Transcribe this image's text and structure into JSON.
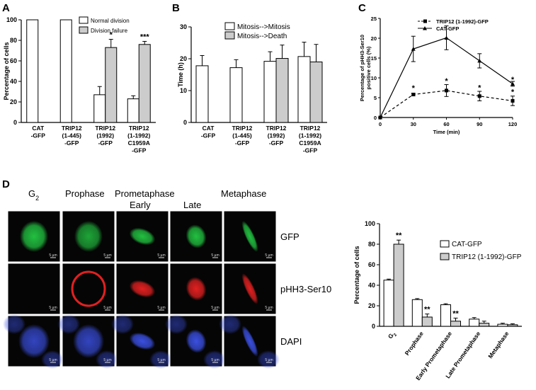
{
  "panels": {
    "A": {
      "letter": "A"
    },
    "B": {
      "letter": "B"
    },
    "C": {
      "letter": "C"
    },
    "D": {
      "letter": "D"
    }
  },
  "chart_data": [
    {
      "id": "A",
      "type": "bar",
      "ylabel": "Percentage of cells",
      "ylim": [
        0,
        100
      ],
      "yticks": [
        0,
        20,
        40,
        60,
        80,
        100
      ],
      "categories": [
        [
          "CAT",
          "-GFP"
        ],
        [
          "TRIP12",
          "(1-445)",
          "-GFP"
        ],
        [
          "TRIP12",
          "(1992)",
          "-GFP"
        ],
        [
          "TRIP12",
          "(1-1992)",
          "C1959A",
          "-GFP"
        ]
      ],
      "series": [
        {
          "name": "Normal division",
          "color": "#ffffff",
          "values": [
            100,
            100,
            27,
            23
          ],
          "errors": [
            0,
            0,
            8,
            3
          ]
        },
        {
          "name": "Division failure",
          "color": "#cccccc",
          "values": [
            null,
            null,
            73,
            76
          ],
          "errors": [
            0,
            0,
            8,
            3
          ]
        }
      ],
      "annotations": [
        {
          "index": 2,
          "text": "*"
        },
        {
          "index": 3,
          "text": "***"
        }
      ],
      "legend_position": "top-right"
    },
    {
      "id": "B",
      "type": "bar",
      "ylabel": "Time (h)",
      "ylim": [
        0,
        30
      ],
      "yticks": [
        0,
        10,
        20,
        30
      ],
      "categories": [
        [
          "CAT",
          "-GFP"
        ],
        [
          "TRIP12",
          "(1-445)",
          "-GFP"
        ],
        [
          "TRIP12",
          "(1992)",
          "-GFP"
        ],
        [
          "TRIP12",
          "(1-1992)",
          "C1959A",
          "-GFP"
        ]
      ],
      "series": [
        {
          "name": "Mitosis-->Mitosis",
          "color": "#ffffff",
          "values": [
            17.8,
            17.2,
            19.2,
            20.7
          ],
          "errors": [
            3.2,
            2.5,
            3,
            4.5
          ]
        },
        {
          "name": "Mitosis-->Death",
          "color": "#cccccc",
          "values": [
            null,
            null,
            20.1,
            19
          ],
          "errors": [
            0,
            0,
            4.2,
            5.5
          ]
        }
      ],
      "legend_position": "top-right"
    },
    {
      "id": "C",
      "type": "line",
      "ylabel": "Percentage of pHH3-Ser10",
      "ylabel2": "positive cells (%)",
      "xlabel": "Time (min)",
      "xlim": [
        0,
        120
      ],
      "ylim": [
        0,
        25
      ],
      "xticks": [
        0,
        30,
        60,
        90,
        120
      ],
      "yticks": [
        0,
        5,
        10,
        15,
        20,
        25
      ],
      "x": [
        0,
        30,
        60,
        90,
        120
      ],
      "series": [
        {
          "name": "TRIP12 (1-1992)-GFP",
          "dashed": true,
          "marker": "square",
          "values": [
            0,
            5.8,
            6.8,
            5.4,
            4.2
          ],
          "errors": [
            0,
            0.3,
            1.5,
            1.2,
            1.2
          ]
        },
        {
          "name": "CAT-GFP",
          "dashed": false,
          "marker": "triangle",
          "values": [
            0,
            17.3,
            20.1,
            14.3,
            8.5
          ],
          "errors": [
            0,
            3.2,
            3,
            1.8,
            0.6
          ]
        }
      ],
      "annotations": [
        {
          "x": 30,
          "y": 7.3,
          "text": "*"
        },
        {
          "x": 60,
          "y": 9.1,
          "text": "*"
        },
        {
          "x": 90,
          "y": 7.4,
          "text": "*"
        },
        {
          "x": 120,
          "y": 9.5,
          "text": "*"
        },
        {
          "x": 120,
          "y": 6.3,
          "text": "*"
        }
      ],
      "legend_position": "top-right"
    },
    {
      "id": "D",
      "type": "bar",
      "ylabel": "Percentage of cells",
      "ylim": [
        0,
        100
      ],
      "yticks": [
        0,
        20,
        40,
        60,
        80,
        100
      ],
      "categories": [
        "G2",
        "Prophase",
        "Early Prometaphase",
        "Late Prometaphase",
        "Metaphase"
      ],
      "series": [
        {
          "name": "CAT-GFP",
          "color": "#ffffff",
          "values": [
            45,
            26,
            21,
            7,
            2
          ],
          "errors": [
            1,
            1,
            1,
            1.5,
            1
          ]
        },
        {
          "name": "TRIP12 (1-1992)-GFP",
          "color": "#cccccc",
          "values": [
            80,
            9,
            5,
            3,
            1.5
          ],
          "errors": [
            4,
            3,
            3,
            2,
            1
          ]
        }
      ],
      "annotations": [
        {
          "index": 0,
          "series": 1,
          "text": "**"
        },
        {
          "index": 1,
          "series": 1,
          "text": "**"
        },
        {
          "index": 2,
          "series": 1,
          "text": "**"
        }
      ],
      "legend_position": "top-right"
    }
  ],
  "micrograph": {
    "stages": [
      "G",
      "Prophase",
      "Prometaphase",
      "Metaphase"
    ],
    "g2_subscript": "2",
    "substages": [
      "Early",
      "Late"
    ],
    "channels": [
      "GFP",
      "pHH3-Ser10",
      "DAPI"
    ],
    "channel_colors": [
      "#22c040",
      "#e02020",
      "#3a4fe0"
    ],
    "scale_label": "5 µm"
  }
}
